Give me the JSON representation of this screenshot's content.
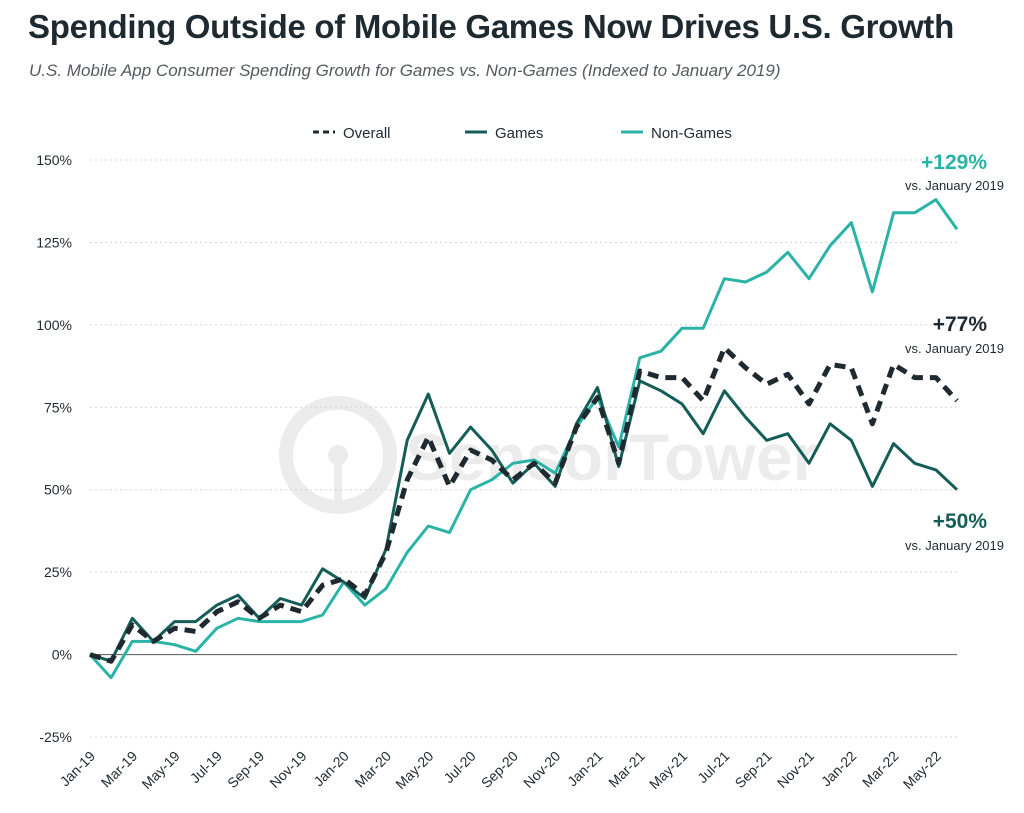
{
  "title": "Spending Outside of Mobile Games Now Drives U.S. Growth",
  "subtitle": "U.S. Mobile App Consumer Spending Growth for Games vs. Non-Games (Indexed to January 2019)",
  "watermark": "SensorTower",
  "colors": {
    "overall": "#1f2a30",
    "games": "#155e57",
    "non_games": "#2ab3a6",
    "grid": "#d4d4d4",
    "zero": "#555555"
  },
  "chart_data": {
    "type": "line",
    "title": "Spending Outside of Mobile Games Now Drives U.S. Growth",
    "subtitle": "U.S. Mobile App Consumer Spending Growth for Games vs. Non-Games (Indexed to January 2019)",
    "ylim": [
      -25,
      150
    ],
    "yticks": [
      -25,
      0,
      25,
      50,
      75,
      100,
      125,
      150
    ],
    "ytick_labels": [
      "-25%",
      "0%",
      "25%",
      "50%",
      "75%",
      "100%",
      "125%",
      "150%"
    ],
    "x_labels": [
      "Jan-19",
      "Mar-19",
      "May-19",
      "Jul-19",
      "Sep-19",
      "Nov-19",
      "Jan-20",
      "Mar-20",
      "May-20",
      "Jul-20",
      "Sep-20",
      "Nov-20",
      "Jan-21",
      "Mar-21",
      "May-21",
      "Jul-21",
      "Sep-21",
      "Nov-21",
      "Jan-22",
      "Mar-22",
      "May-22"
    ],
    "x_label_every": 2,
    "legend_position": "top-center",
    "series": [
      {
        "name": "Overall",
        "style": "dashed",
        "values": [
          0,
          -2,
          9,
          4,
          8,
          7,
          13,
          16,
          11,
          15,
          13,
          21,
          23,
          18,
          31,
          53,
          66,
          51,
          62,
          59,
          53,
          58,
          52,
          69,
          78,
          58,
          86,
          84,
          84,
          77,
          93,
          87,
          82,
          85,
          76,
          88,
          87,
          70,
          88,
          84,
          84,
          77
        ]
      },
      {
        "name": "Games",
        "style": "solid",
        "values": [
          0,
          -2,
          11,
          4,
          10,
          10,
          15,
          18,
          11,
          17,
          15,
          26,
          22,
          17,
          32,
          65,
          79,
          61,
          69,
          62,
          52,
          58,
          51,
          70,
          81,
          57,
          83,
          80,
          76,
          67,
          80,
          72,
          65,
          67,
          58,
          70,
          65,
          51,
          64,
          58,
          56,
          50
        ]
      },
      {
        "name": "Non-Games",
        "style": "solid",
        "values": [
          0,
          -7,
          4,
          4,
          3,
          1,
          8,
          11,
          10,
          10,
          10,
          12,
          22,
          15,
          20,
          31,
          39,
          37,
          50,
          53,
          58,
          59,
          55,
          69,
          78,
          63,
          90,
          92,
          99,
          99,
          114,
          113,
          116,
          122,
          114,
          124,
          131,
          110,
          134,
          134,
          138,
          129
        ]
      }
    ],
    "annotations": [
      {
        "series": "Non-Games",
        "value": "+129%",
        "note": "vs. January 2019"
      },
      {
        "series": "Overall",
        "value": "+77%",
        "note": "vs. January 2019"
      },
      {
        "series": "Games",
        "value": "+50%",
        "note": "vs. January 2019"
      }
    ]
  }
}
